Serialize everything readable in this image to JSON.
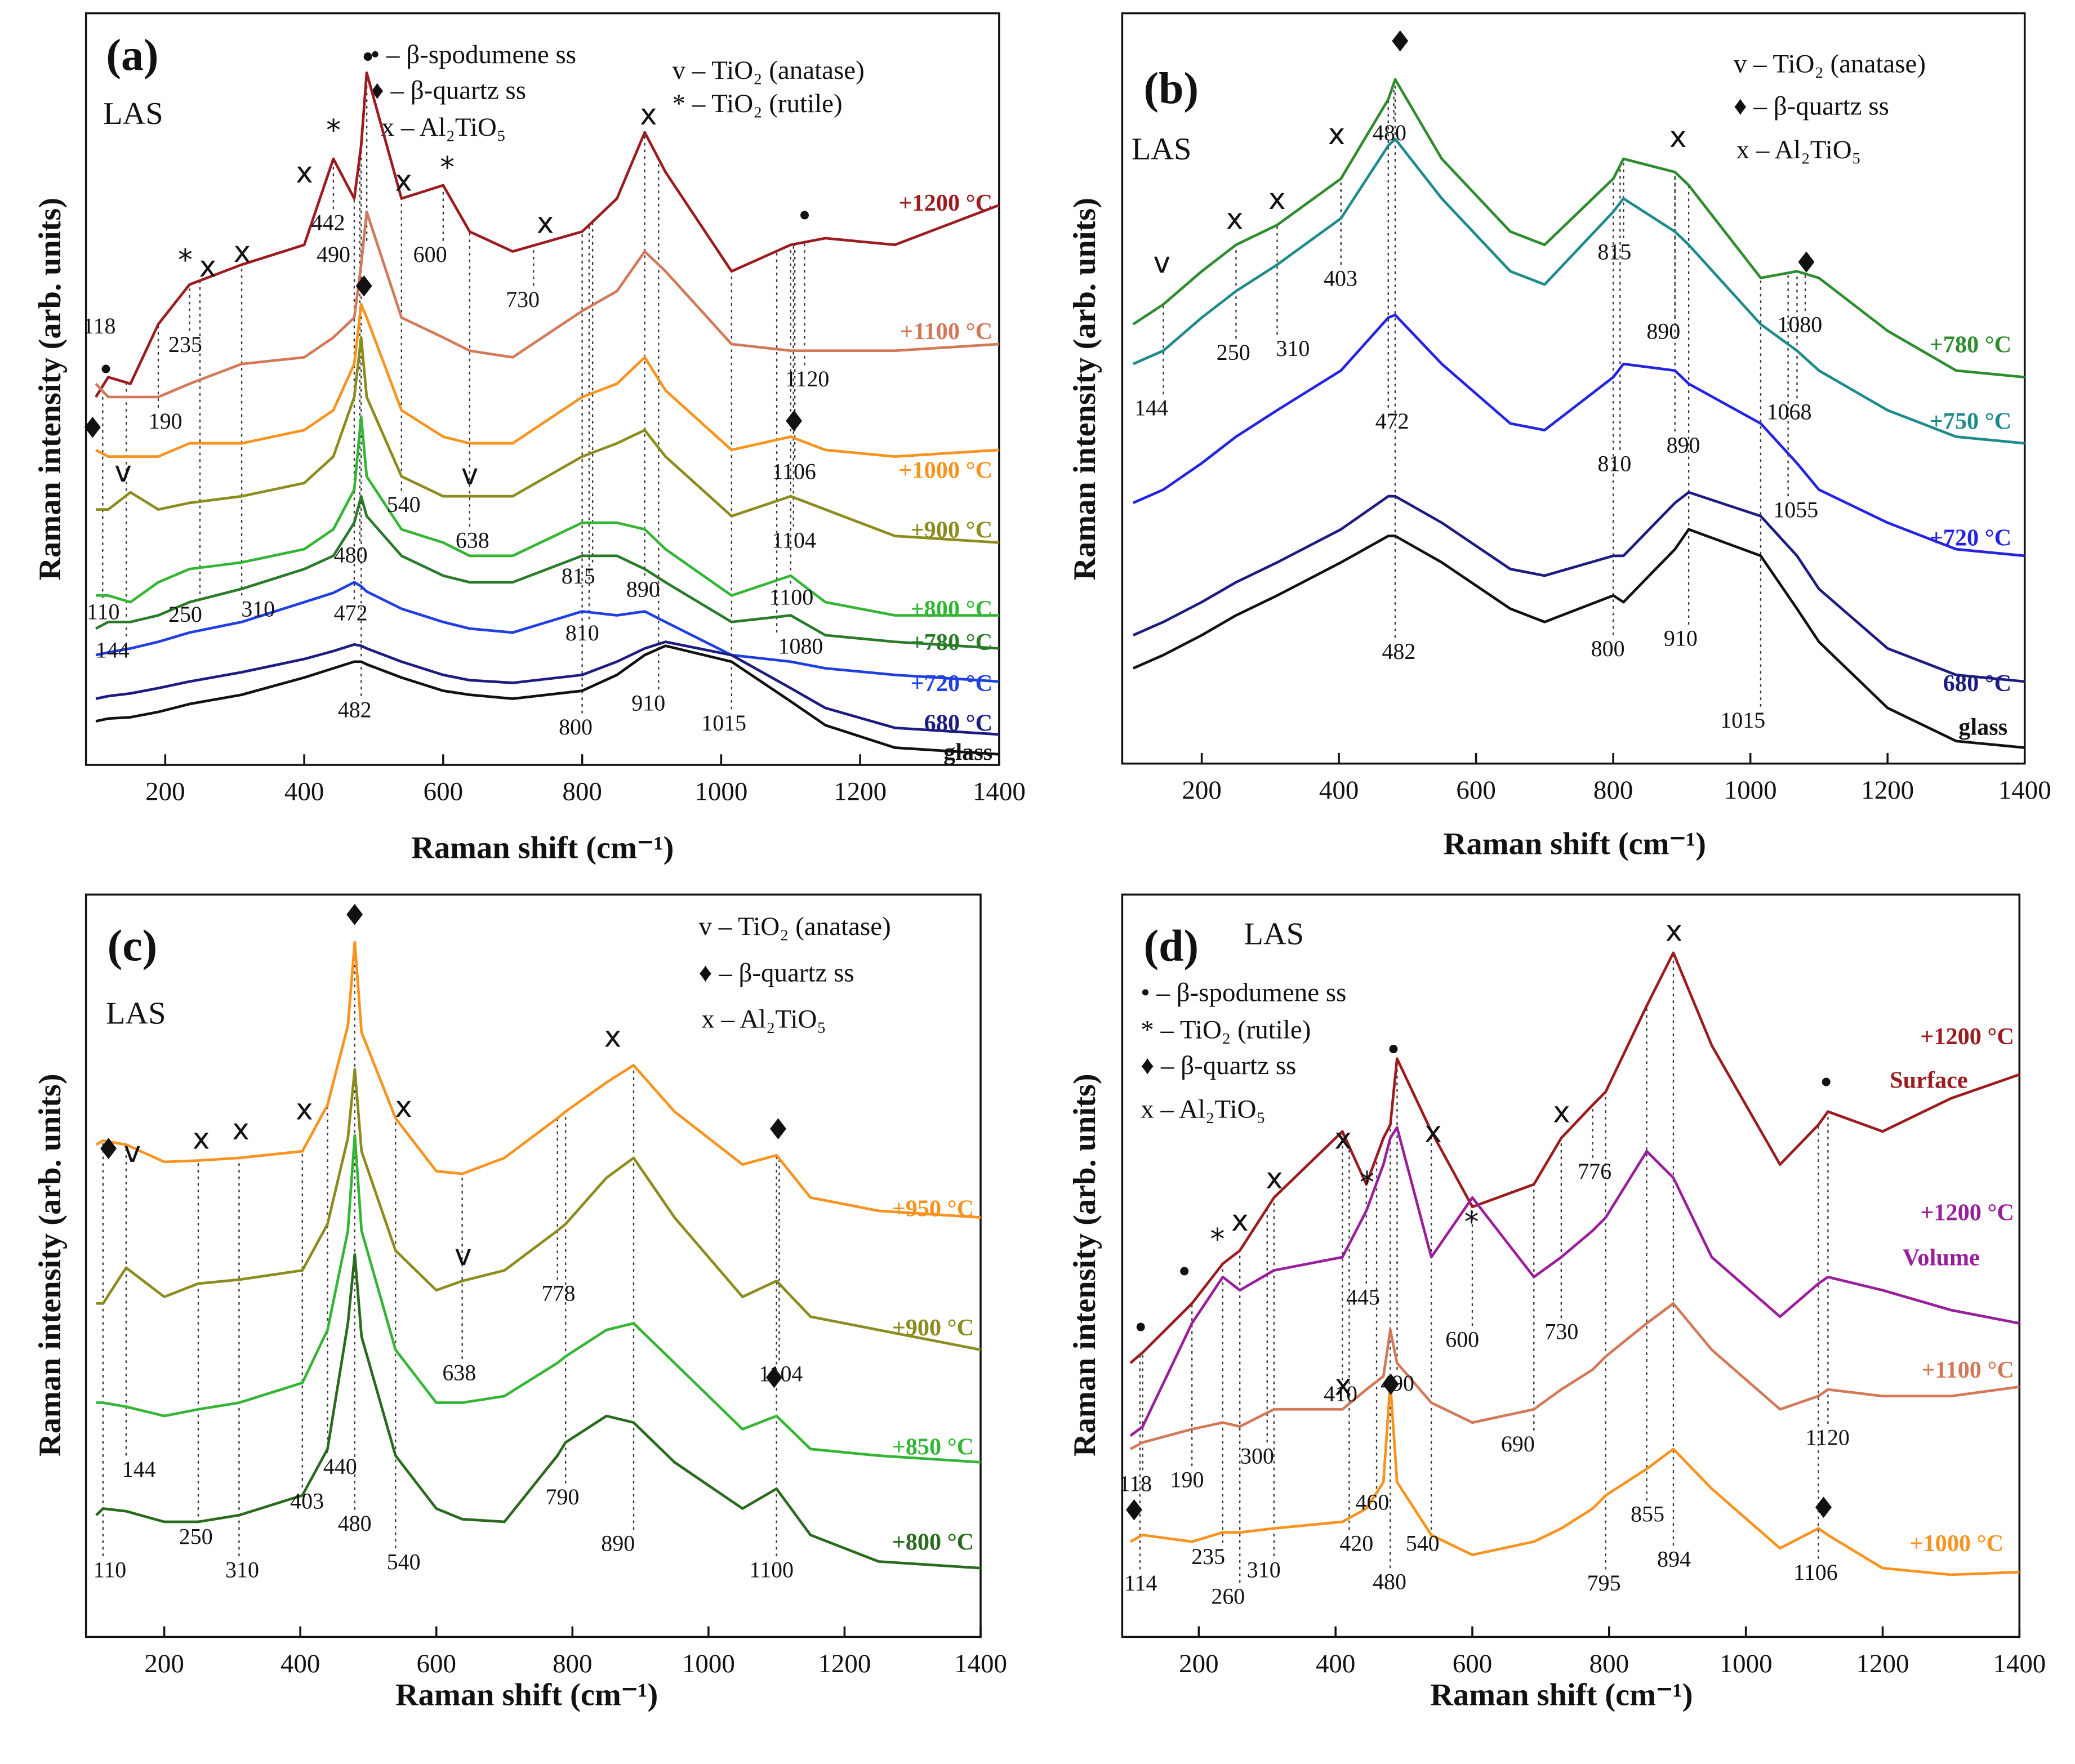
{
  "chart_data": [
    {
      "type": "line",
      "panel_label": "(a)",
      "sample": "LAS",
      "xlabel": "Raman shift (cm⁻¹)",
      "ylabel": "Raman intensity (arb. units)",
      "xlim": [
        86,
        1400
      ],
      "xticks": [
        200,
        400,
        600,
        800,
        1000,
        1200,
        1400
      ],
      "ylim": [
        0,
        568
      ],
      "x": [
        100,
        118,
        150,
        190,
        235,
        310,
        400,
        442,
        472,
        482,
        490,
        540,
        600,
        638,
        700,
        800,
        850,
        890,
        920,
        1015,
        1100,
        1150,
        1250,
        1400
      ],
      "series": [
        {
          "name": "+1200 °C",
          "color": "#9b1b1f",
          "values": [
            278,
            293,
            288,
            333,
            363,
            378,
            393,
            458,
            428,
            468,
            523,
            428,
            438,
            403,
            388,
            403,
            428,
            478,
            448,
            373,
            393,
            398,
            393,
            423
          ]
        },
        {
          "name": "+1100 °C",
          "color": "#d2795a",
          "values": [
            288,
            278,
            278,
            278,
            288,
            303,
            308,
            323,
            338,
            378,
            418,
            338,
            323,
            313,
            308,
            343,
            358,
            388,
            373,
            318,
            313,
            313,
            313,
            318
          ]
        },
        {
          "name": "+1000 °C",
          "color": "#f7931e",
          "values": [
            238,
            233,
            233,
            233,
            243,
            243,
            253,
            268,
            303,
            348,
            338,
            268,
            248,
            243,
            243,
            278,
            288,
            308,
            283,
            238,
            248,
            238,
            233,
            238
          ]
        },
        {
          "name": "+900 °C",
          "color": "#8b8b1e",
          "values": [
            193,
            193,
            206,
            193,
            198,
            203,
            213,
            233,
            278,
            323,
            278,
            218,
            203,
            203,
            203,
            233,
            243,
            253,
            233,
            188,
            203,
            193,
            173,
            168
          ]
        },
        {
          "name": "+800 °C",
          "color": "#35b535",
          "values": [
            128,
            128,
            123,
            138,
            148,
            153,
            163,
            178,
            208,
            263,
            218,
            178,
            168,
            158,
            158,
            183,
            183,
            178,
            163,
            128,
            143,
            123,
            113,
            113
          ]
        },
        {
          "name": "+780 °C",
          "color": "#2a7a2a",
          "values": [
            103,
            108,
            108,
            113,
            123,
            133,
            148,
            158,
            183,
            203,
            188,
            158,
            143,
            138,
            138,
            158,
            158,
            148,
            138,
            108,
            113,
            98,
            93,
            88
          ]
        },
        {
          "name": "+720 °C",
          "color": "#1f3fe0",
          "values": [
            83,
            85,
            88,
            93,
            100,
            108,
            123,
            130,
            138,
            135,
            131,
            118,
            108,
            103,
            100,
            116,
            113,
            116,
            108,
            83,
            78,
            73,
            68,
            63
          ]
        },
        {
          "name": "680 °C",
          "color": "#1c1c80",
          "values": [
            50,
            52,
            54,
            58,
            63,
            70,
            80,
            86,
            91,
            90,
            88,
            78,
            68,
            64,
            62,
            68,
            78,
            88,
            93,
            83,
            58,
            43,
            28,
            23
          ]
        },
        {
          "name": "glass",
          "color": "#111111",
          "values": [
            33,
            35,
            36,
            40,
            46,
            53,
            66,
            73,
            78,
            78,
            76,
            66,
            56,
            53,
            50,
            56,
            68,
            83,
            90,
            78,
            48,
            30,
            13,
            8
          ]
        }
      ],
      "annotations": [
        118,
        235,
        190,
        110,
        144,
        250,
        310,
        442,
        490,
        600,
        730,
        540,
        638,
        480,
        472,
        482,
        815,
        890,
        810,
        800,
        910,
        1015,
        1120,
        1106,
        1104,
        1100,
        1080
      ],
      "markers": [
        "•",
        "*",
        "x",
        "x",
        "*",
        "x",
        "x",
        "•",
        "*",
        "x",
        "x",
        "•",
        "♦",
        "♦",
        "♦",
        "v",
        "v"
      ],
      "legend": [
        "• – β-spodumene ss",
        "♦ – β-quartz ss",
        "x – Al₂TiO₅",
        "v – TiO₂ (anatase)",
        "* – TiO₂ (rutile)"
      ]
    },
    {
      "type": "line",
      "panel_label": "(b)",
      "sample": "LAS",
      "xlabel": "Raman shift (cm⁻¹)",
      "ylabel": "Raman intensity (arb. units)",
      "xlim": [
        84,
        1400
      ],
      "xticks": [
        200,
        400,
        600,
        800,
        1000,
        1200,
        1400
      ],
      "ylim": [
        0,
        567
      ],
      "x": [
        100,
        144,
        200,
        250,
        310,
        403,
        472,
        482,
        550,
        650,
        700,
        800,
        815,
        890,
        910,
        1015,
        1068,
        1100,
        1200,
        1300,
        1400
      ],
      "series": [
        {
          "name": "+780 °C",
          "color": "#2e8b2e",
          "values": [
            332,
            347,
            372,
            392,
            407,
            442,
            502,
            517,
            457,
            402,
            392,
            442,
            457,
            447,
            437,
            367,
            372,
            367,
            327,
            297,
            292
          ]
        },
        {
          "name": "+750 °C",
          "color": "#1e8a8a",
          "values": [
            302,
            312,
            337,
            357,
            377,
            412,
            467,
            472,
            427,
            372,
            362,
            417,
            427,
            402,
            392,
            332,
            312,
            297,
            267,
            247,
            242
          ]
        },
        {
          "name": "+720 °C",
          "color": "#2424e0",
          "values": [
            197,
            207,
            227,
            247,
            267,
            297,
            337,
            339,
            302,
            257,
            252,
            292,
            302,
            297,
            287,
            257,
            227,
            207,
            182,
            162,
            157
          ]
        },
        {
          "name": "680 °C",
          "color": "#1c1c80",
          "values": [
            97,
            107,
            122,
            137,
            152,
            177,
            202,
            202,
            182,
            147,
            142,
            157,
            157,
            197,
            205,
            187,
            157,
            132,
            87,
            67,
            62
          ]
        },
        {
          "name": "glass",
          "color": "#111111",
          "values": [
            72,
            82,
            97,
            112,
            127,
            152,
            172,
            172,
            152,
            117,
            107,
            127,
            122,
            162,
            177,
            157,
            117,
            92,
            42,
            17,
            12
          ]
        }
      ],
      "annotations": [
        144,
        250,
        310,
        403,
        480,
        472,
        482,
        815,
        890,
        810,
        890,
        800,
        910,
        1015,
        1080,
        1068,
        1055
      ],
      "markers": [
        "♦",
        "v",
        "x",
        "x",
        "x",
        "x",
        "♦"
      ],
      "legend": [
        "v – TiO₂ (anatase)",
        "♦ – β-quartz ss",
        "x – Al₂TiO₅"
      ]
    },
    {
      "type": "line",
      "panel_label": "(c)",
      "sample": "LAS",
      "xlabel": "Raman shift (cm⁻¹)",
      "ylabel": "Raman intensity (arb. units)",
      "xlim": [
        85,
        1400
      ],
      "xticks": [
        200,
        400,
        600,
        800,
        1000,
        1200,
        1400
      ],
      "ylim": [
        0,
        561
      ],
      "x": [
        100,
        110,
        144,
        200,
        250,
        310,
        403,
        440,
        470,
        480,
        490,
        540,
        600,
        638,
        700,
        778,
        790,
        850,
        890,
        950,
        1050,
        1100,
        1150,
        1250,
        1400
      ],
      "series": [
        {
          "name": "+950 °C",
          "color": "#f7931e",
          "values": [
            372,
            375,
            372,
            359,
            360,
            362,
            367,
            402,
            462,
            525,
            457,
            392,
            352,
            350,
            362,
            392,
            397,
            419,
            432,
            397,
            357,
            364,
            332,
            322,
            317
          ]
        },
        {
          "name": "+900 °C",
          "color": "#8b8b1e",
          "values": [
            252,
            252,
            279,
            257,
            267,
            270,
            277,
            312,
            377,
            429,
            367,
            292,
            262,
            269,
            277,
            307,
            312,
            347,
            362,
            317,
            257,
            269,
            242,
            232,
            217
          ]
        },
        {
          "name": "+850 °C",
          "color": "#35b535",
          "values": [
            177,
            177,
            174,
            167,
            172,
            177,
            192,
            232,
            307,
            379,
            307,
            217,
            177,
            177,
            182,
            207,
            212,
            232,
            237,
            207,
            157,
            167,
            142,
            137,
            132
          ]
        },
        {
          "name": "+800 °C",
          "color": "#2a6a1f",
          "values": [
            92,
            97,
            95,
            87,
            87,
            92,
            107,
            142,
            237,
            289,
            227,
            137,
            97,
            89,
            87,
            137,
            147,
            167,
            162,
            132,
            97,
            112,
            77,
            57,
            52
          ]
        }
      ],
      "annotations": [
        110,
        144,
        250,
        310,
        403,
        440,
        480,
        540,
        638,
        778,
        790,
        890,
        1104,
        1100
      ],
      "markers": [
        "♦",
        "♦",
        "v",
        "x",
        "x",
        "x",
        "x",
        "x",
        "♦",
        "v",
        "♦"
      ],
      "legend": [
        "v – TiO₂ (anatase)",
        "♦ – β-quartz ss",
        "x – Al₂TiO₅"
      ]
    },
    {
      "type": "line",
      "panel_label": "(d)",
      "sample": "LAS",
      "xlabel": "Raman shift (cm⁻¹)",
      "ylabel": "Raman intensity (arb. units)",
      "xlim": [
        88,
        1400
      ],
      "xticks": [
        200,
        400,
        600,
        800,
        1000,
        1200,
        1400
      ],
      "ylim": [
        0,
        561
      ],
      "x": [
        100,
        118,
        190,
        235,
        260,
        310,
        410,
        445,
        470,
        480,
        490,
        540,
        600,
        690,
        730,
        776,
        795,
        855,
        894,
        950,
        1050,
        1106,
        1120,
        1200,
        1300,
        1400
      ],
      "series": [
        {
          "name": "+1200 °C",
          "label2": "Surface",
          "color": "#9b1b1f",
          "values": [
            207,
            215,
            252,
            282,
            292,
            332,
            382,
            342,
            377,
            387,
            437,
            382,
            325,
            342,
            377,
            402,
            412,
            477,
            517,
            447,
            357,
            387,
            397,
            382,
            407,
            425
          ]
        },
        {
          "name": "+1200 °C",
          "label2": "Volume",
          "color": "#9a1e9a",
          "values": [
            152,
            159,
            237,
            272,
            262,
            277,
            287,
            322,
            357,
            377,
            385,
            287,
            332,
            272,
            287,
            307,
            317,
            367,
            347,
            287,
            242,
            267,
            272,
            262,
            247,
            237
          ]
        },
        {
          "name": "+1100 °C",
          "color": "#d2795a",
          "values": [
            142,
            147,
            157,
            162,
            159,
            172,
            172,
            187,
            197,
            232,
            207,
            177,
            162,
            172,
            187,
            202,
            212,
            237,
            252,
            217,
            172,
            182,
            187,
            182,
            182,
            189
          ]
        },
        {
          "name": "+1000 °C",
          "color": "#f7931e",
          "values": [
            72,
            77,
            72,
            79,
            79,
            82,
            87,
            97,
            117,
            192,
            117,
            77,
            62,
            72,
            82,
            97,
            107,
            127,
            142,
            112,
            67,
            82,
            77,
            52,
            47,
            49
          ]
        }
      ],
      "annotations": [
        118,
        190,
        300,
        410,
        445,
        490,
        600,
        730,
        776,
        690,
        1120,
        420,
        460,
        540,
        480,
        235,
        260,
        310,
        114,
        795,
        855,
        894,
        1106
      ],
      "markers": [
        "x",
        "•",
        "•",
        "x",
        "x",
        "x",
        "*",
        "*",
        "x",
        "x",
        "*",
        "•",
        "•",
        "x",
        "♦",
        "♦",
        "♦"
      ],
      "legend": [
        "• – β-spodumene ss",
        "* – TiO₂ (rutile)",
        "♦ – β-quartz ss",
        "x – Al₂TiO₅"
      ]
    }
  ]
}
